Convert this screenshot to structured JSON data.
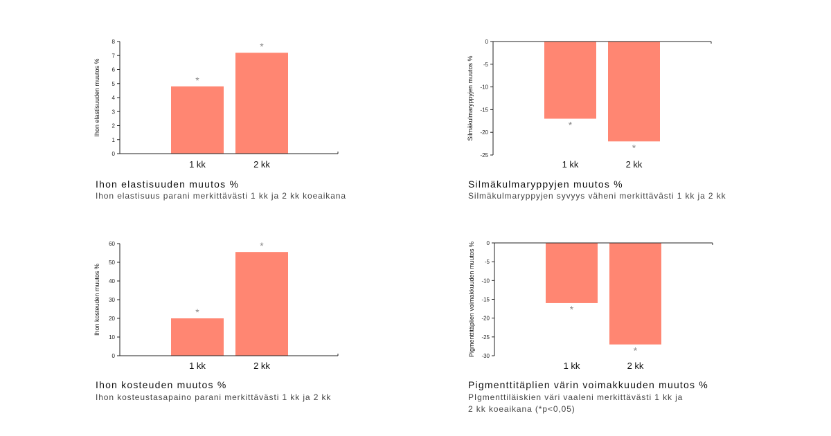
{
  "colors": {
    "bar": "#ff8672",
    "axis": "#222222",
    "star": "#888888"
  },
  "chart_data": [
    {
      "type": "bar",
      "categories": [
        "1 kk",
        "2 kk"
      ],
      "values": [
        4.8,
        7.2
      ],
      "significance": [
        "*",
        "*"
      ],
      "ylabel": "Ihon elastisuuden muutos %",
      "ylim": [
        0,
        8
      ],
      "yticks": [
        0,
        1,
        2,
        3,
        4,
        5,
        6,
        7,
        8
      ],
      "title": "Ihon elastisuuden muutos %",
      "subtitle": [
        "Ihon elastisuus parani merkittävästi 1 kk ja 2 kk koeaikana"
      ]
    },
    {
      "type": "bar",
      "categories": [
        "1 kk",
        "2 kk"
      ],
      "values": [
        -17,
        -22
      ],
      "significance": [
        "*",
        "*"
      ],
      "ylabel": "Silmäkulmaryppyjen muutos %",
      "ylim": [
        -25,
        0
      ],
      "yticks": [
        0,
        -5,
        -10,
        -15,
        -20,
        -25
      ],
      "title": "Silmäkulmaryppyjen muutos %",
      "subtitle": [
        "Silmäkulmaryppyjen syvyys väheni merkittävästi 1 kk ja 2 kk"
      ]
    },
    {
      "type": "bar",
      "categories": [
        "1 kk",
        "2 kk"
      ],
      "values": [
        20,
        55.5
      ],
      "significance": [
        "*",
        "*"
      ],
      "ylabel": "Ihon kosteuden muutos %",
      "ylim": [
        0,
        60
      ],
      "yticks": [
        0,
        10,
        20,
        30,
        40,
        50,
        60
      ],
      "title": "Ihon kosteuden muutos %",
      "subtitle": [
        "Ihon kosteustasapaino parani merkittävästi 1 kk ja 2 kk"
      ]
    },
    {
      "type": "bar",
      "categories": [
        "1 kk",
        "2 kk"
      ],
      "values": [
        -16,
        -27
      ],
      "significance": [
        "*",
        "*"
      ],
      "ylabel": "Pigmenttitäplien voimakkuuden muutos %",
      "ylim": [
        -30,
        0
      ],
      "yticks": [
        0,
        -5,
        -10,
        -15,
        -20,
        -25,
        -30
      ],
      "title": "Pigmenttitäplien värin voimakkuuden muutos %",
      "subtitle": [
        "PIgmenttiläiskien väri vaaleni merkittävästi 1 kk ja",
        "2 kk koeaikana (*p<0,05)"
      ]
    }
  ]
}
